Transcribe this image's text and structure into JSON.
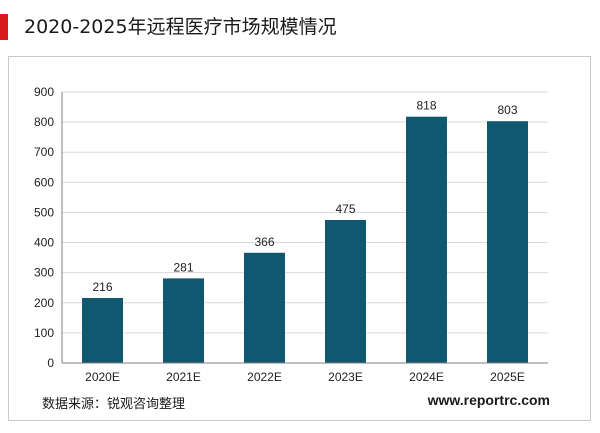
{
  "title": "2020-2025年远程医疗市场规模情况",
  "source": "数据来源：锐观咨询整理",
  "website": "www.reportrc.com",
  "colors": {
    "bar": "#0f5870",
    "accent": "#d7191c",
    "grid": "#d9d9d9",
    "axis": "#7f7f7f"
  },
  "chart_data": {
    "type": "bar",
    "categories": [
      "2020E",
      "2021E",
      "2022E",
      "2023E",
      "2024E",
      "2025E"
    ],
    "values": [
      216,
      281,
      366,
      475,
      818,
      803
    ],
    "title": "",
    "xlabel": "",
    "ylabel": "",
    "ylim": [
      0,
      900
    ],
    "yticks": [
      0,
      100,
      200,
      300,
      400,
      500,
      600,
      700,
      800,
      900
    ],
    "grid": true,
    "legend": false,
    "data_labels": true
  }
}
